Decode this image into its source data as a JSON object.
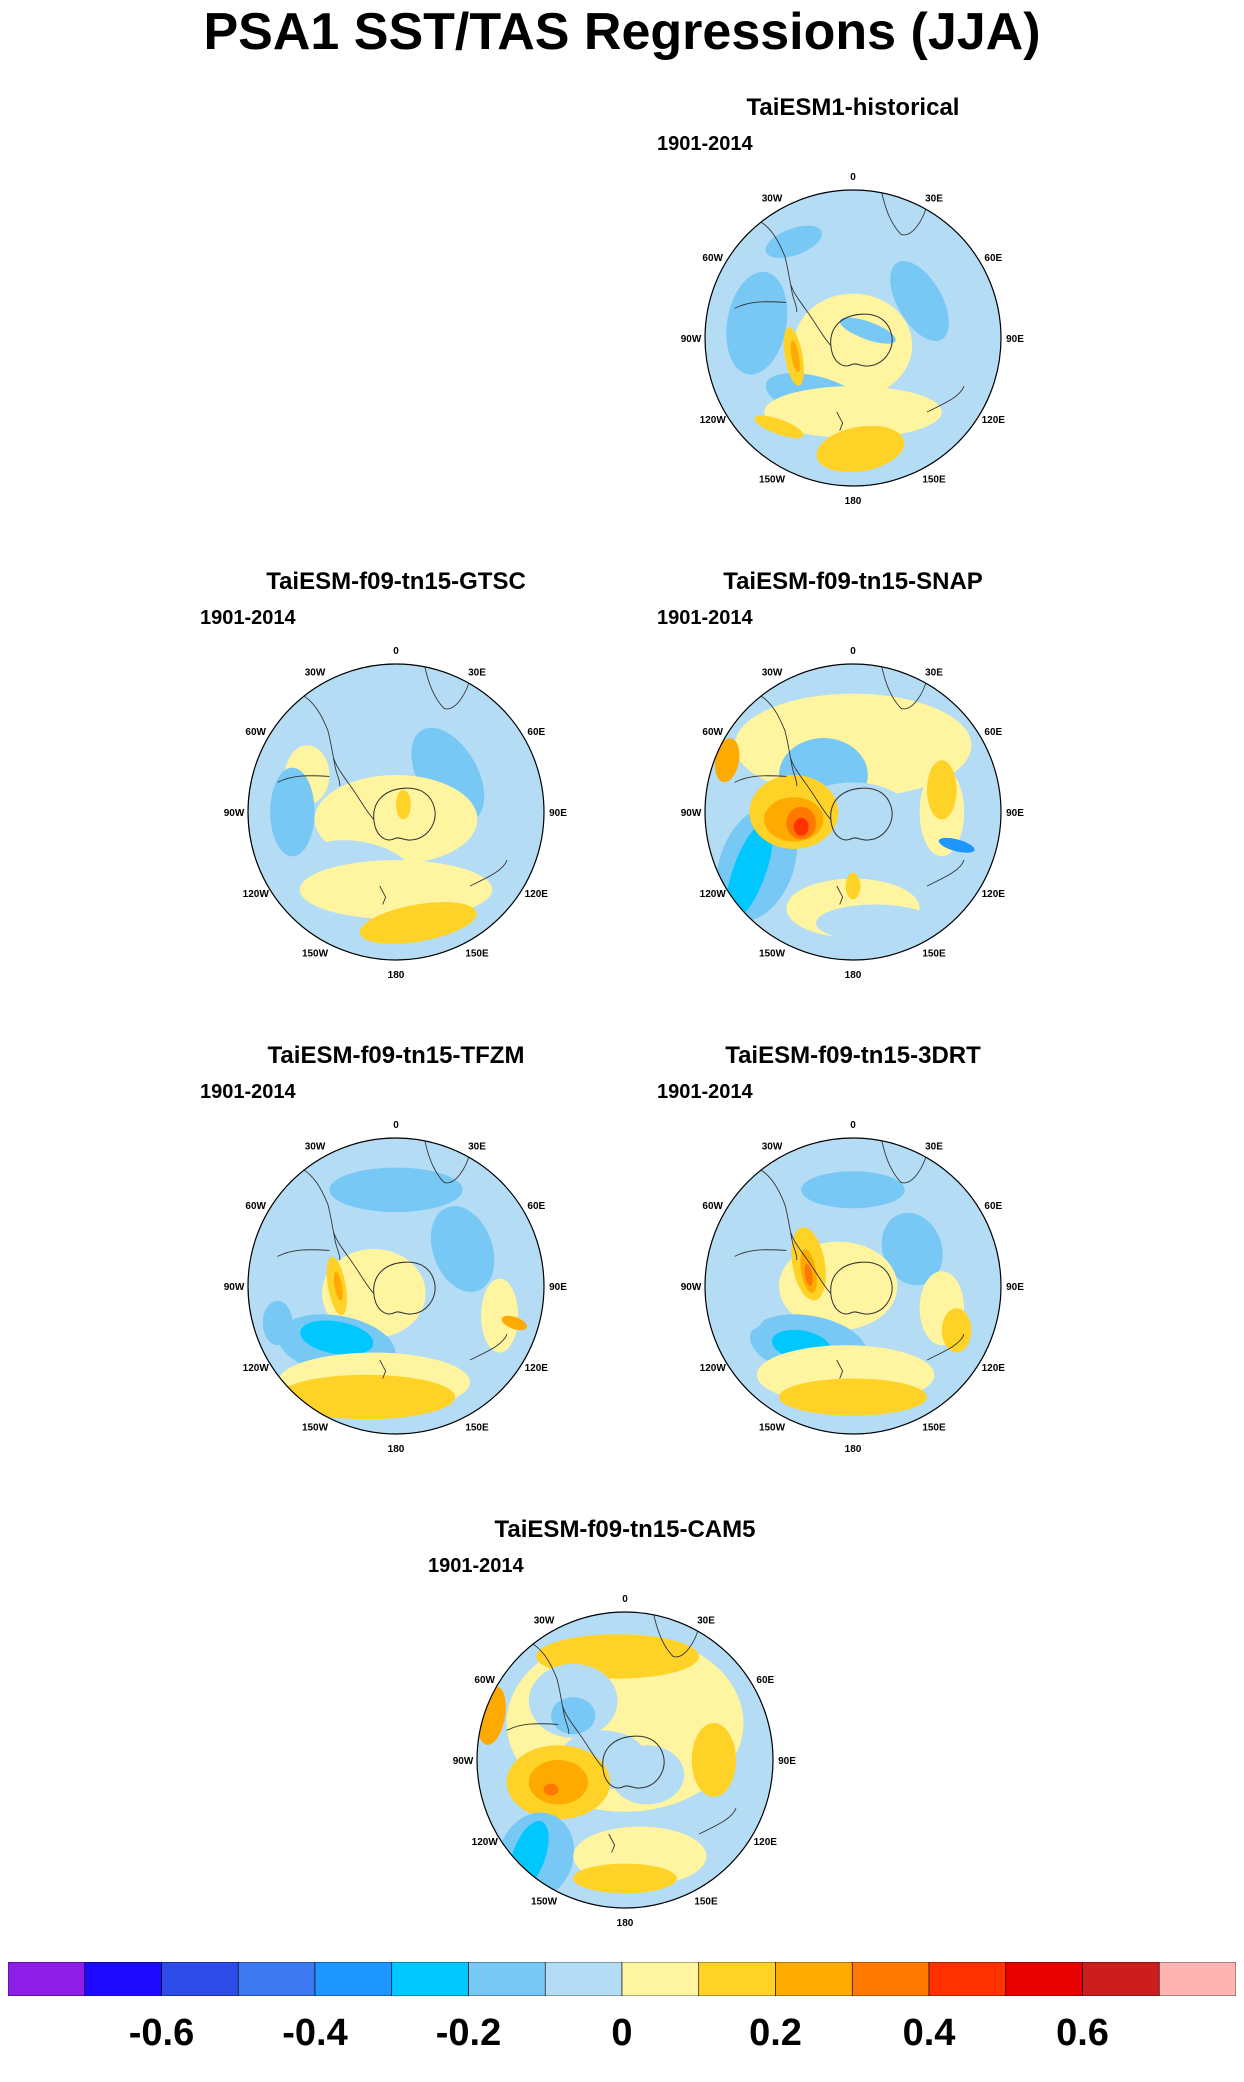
{
  "title": "PSA1 SST/TAS Regressions (JJA)",
  "period": "1901-2014",
  "lon_labels": {
    "0": "0",
    "30E": "30E",
    "60E": "60E",
    "90E": "90E",
    "120E": "120E",
    "150E": "150E",
    "180": "180",
    "150W": "150W",
    "120W": "120W",
    "90W": "90W",
    "60W": "60W",
    "30W": "30W"
  },
  "panels": [
    {
      "id": "p1",
      "title": "TaiESM1-historical",
      "pattern": "hist"
    },
    {
      "id": "p2",
      "title": "TaiESM-f09-tn15-GTSC",
      "pattern": "gtsc"
    },
    {
      "id": "p3",
      "title": "TaiESM-f09-tn15-SNAP",
      "pattern": "snap"
    },
    {
      "id": "p4",
      "title": "TaiESM-f09-tn15-TFZM",
      "pattern": "tfzm"
    },
    {
      "id": "p5",
      "title": "TaiESM-f09-tn15-3DRT",
      "pattern": "3drt"
    },
    {
      "id": "p6",
      "title": "TaiESM-f09-tn15-CAM5",
      "pattern": "cam5"
    }
  ],
  "colorbar": {
    "colors": [
      "#8c1ee8",
      "#1e0aff",
      "#2d4be6",
      "#3c78f0",
      "#1e96ff",
      "#00c8ff",
      "#78c8f5",
      "#b4dcf5",
      "#fff5a0",
      "#ffd228",
      "#ffaa00",
      "#ff7800",
      "#ff3200",
      "#e60000",
      "#cd1e1e",
      "#ffb4b4"
    ],
    "labels": [
      "-0.6",
      "-0.4",
      "-0.2",
      "0",
      "0.2",
      "0.4",
      "0.6"
    ]
  }
}
